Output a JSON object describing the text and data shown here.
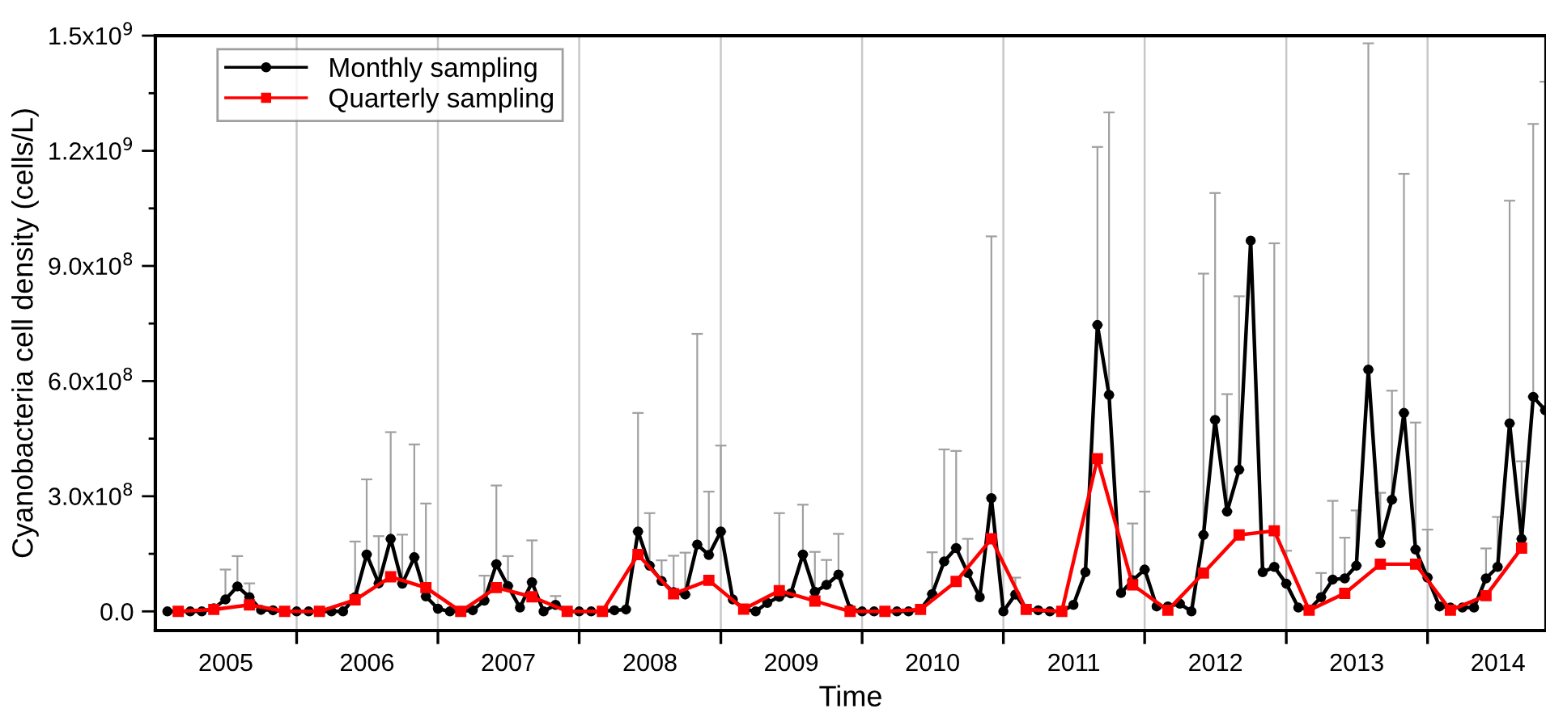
{
  "chart_data": {
    "type": "line",
    "xlabel": "Time",
    "ylabel": "Cyanobacteria cell density (cells/L)",
    "xlim": [
      "2005-01-01",
      "2014-11-03"
    ],
    "xticks": [
      {
        "value": "2006-01-01",
        "label": null
      },
      {
        "value": "2007-01-01",
        "label": null
      },
      {
        "value": "2008-01-01",
        "label": null
      },
      {
        "value": "2009-01-01",
        "label": null
      },
      {
        "value": "2010-01-01",
        "label": null
      },
      {
        "value": "2011-01-01",
        "label": null
      },
      {
        "value": "2012-01-01",
        "label": null
      },
      {
        "value": "2013-01-01",
        "label": null
      },
      {
        "value": "2014-01-01",
        "label": null
      },
      {
        "value": "2005-07-02",
        "label": "2005"
      },
      {
        "value": "2006-07-02",
        "label": "2006"
      },
      {
        "value": "2007-07-02",
        "label": "2007"
      },
      {
        "value": "2008-07-02",
        "label": "2008"
      },
      {
        "value": "2009-07-02",
        "label": "2009"
      },
      {
        "value": "2010-07-02",
        "label": "2010"
      },
      {
        "value": "2011-07-02",
        "label": "2011"
      },
      {
        "value": "2012-07-02",
        "label": "2012"
      },
      {
        "value": "2013-07-02",
        "label": "2013"
      },
      {
        "value": "2014-07-02",
        "label": "2014"
      }
    ],
    "ylim": [
      -50000000.0,
      1500000000.0
    ],
    "yticks": [
      {
        "value": 0,
        "label": "0.0"
      },
      {
        "value": 300000000.0,
        "label": "3.0x10$^{8}$"
      },
      {
        "value": 600000000.0,
        "label": "6.0x10$^{8}$"
      },
      {
        "value": 900000000.0,
        "label": "9.0x10$^{8}$"
      },
      {
        "value": 1200000000.0,
        "label": "1.2x10$^{9}$"
      },
      {
        "value": 1500000000.0,
        "label": "1.5x10$^{9}$"
      },
      {
        "value": 150000000.0,
        "label": null
      },
      {
        "value": 450000000.0,
        "label": null
      },
      {
        "value": 750000000.0,
        "label": null
      },
      {
        "value": 1050000000.0,
        "label": null
      },
      {
        "value": 1350000000.0,
        "label": null
      }
    ],
    "grid": "x",
    "legend": "top left",
    "series": [
      {
        "name": "Monthly sampling",
        "color": "#000000",
        "marker": "circle",
        "x": [
          "2005-02",
          "2005-03",
          "2005-04",
          "2005-05",
          "2005-06",
          "2005-07",
          "2005-08",
          "2005-09",
          "2005-10",
          "2005-11",
          "2005-12",
          "2006-01",
          "2006-02",
          "2006-03",
          "2006-04",
          "2006-05",
          "2006-06",
          "2006-07",
          "2006-08",
          "2006-09",
          "2006-10",
          "2006-11",
          "2006-12",
          "2007-01",
          "2007-02",
          "2007-03",
          "2007-04",
          "2007-05",
          "2007-06",
          "2007-07",
          "2007-08",
          "2007-09",
          "2007-10",
          "2007-11",
          "2007-12",
          "2008-01",
          "2008-02",
          "2008-03",
          "2008-04",
          "2008-05",
          "2008-06",
          "2008-07",
          "2008-08",
          "2008-09",
          "2008-10",
          "2008-11",
          "2008-12",
          "2009-01",
          "2009-02",
          "2009-03",
          "2009-04",
          "2009-05",
          "2009-06",
          "2009-07",
          "2009-08",
          "2009-09",
          "2009-10",
          "2009-11",
          "2009-12",
          "2010-01",
          "2010-02",
          "2010-03",
          "2010-04",
          "2010-05",
          "2010-06",
          "2010-07",
          "2010-08",
          "2010-09",
          "2010-10",
          "2010-11",
          "2010-12",
          "2011-01",
          "2011-02",
          "2011-03",
          "2011-04",
          "2011-05",
          "2011-06",
          "2011-07",
          "2011-08",
          "2011-09",
          "2011-10",
          "2011-11",
          "2011-12",
          "2012-01",
          "2012-02",
          "2012-03",
          "2012-04",
          "2012-05",
          "2012-06",
          "2012-07",
          "2012-08",
          "2012-09",
          "2012-10",
          "2012-11",
          "2012-12",
          "2013-01",
          "2013-02",
          "2013-03",
          "2013-04",
          "2013-05",
          "2013-06",
          "2013-07",
          "2013-08",
          "2013-09",
          "2013-10",
          "2013-11",
          "2013-12",
          "2014-01",
          "2014-02",
          "2014-03",
          "2014-04",
          "2014-05",
          "2014-06",
          "2014-07",
          "2014-08",
          "2014-09",
          "2014-10",
          "2014-11"
        ],
        "values": [
          0,
          0,
          0,
          0,
          8000000.0,
          31000000.0,
          65000000.0,
          37000000.0,
          4000000.0,
          3000000.0,
          0,
          0,
          0,
          0,
          0,
          0,
          37000000.0,
          148000000.0,
          73000000.0,
          189000000.0,
          72000000.0,
          141000000.0,
          39000000.0,
          7000000.0,
          0,
          0,
          3000000.0,
          28000000.0,
          123000000.0,
          66000000.0,
          10000000.0,
          76000000.0,
          0,
          17000000.0,
          0,
          0,
          0,
          0,
          3000000.0,
          5000000.0,
          208000000.0,
          119000000.0,
          79000000.0,
          50000000.0,
          44000000.0,
          174000000.0,
          147000000.0,
          208000000.0,
          31000000.0,
          6000000.0,
          0,
          22000000.0,
          38000000.0,
          47000000.0,
          148000000.0,
          51000000.0,
          69000000.0,
          96000000.0,
          6000000.0,
          0,
          0,
          0,
          0,
          0,
          5000000.0,
          45000000.0,
          130000000.0,
          165000000.0,
          100000000.0,
          37000000.0,
          295000000.0,
          0,
          44000000.0,
          5000000.0,
          3000000.0,
          0,
          0,
          17000000.0,
          102000000.0,
          746000000.0,
          564000000.0,
          48000000.0,
          81000000.0,
          109000000.0,
          13000000.0,
          13000000.0,
          20000000.0,
          0,
          199000000.0,
          499000000.0,
          260000000.0,
          369000000.0,
          966000000.0,
          102000000.0,
          116000000.0,
          72000000.0,
          10000000.0,
          5000000.0,
          37000000.0,
          83000000.0,
          86000000.0,
          119000000.0,
          630000000.0,
          178000000.0,
          291000000.0,
          517000000.0,
          161000000.0,
          88000000.0,
          13000000.0,
          10000000.0,
          10000000.0,
          10000000.0,
          86000000.0,
          116000000.0,
          490000000.0,
          189000000.0,
          559000000.0,
          524000000.0
        ],
        "errors": [
          null,
          null,
          null,
          null,
          null,
          [
            31000000.0,
            109000000.0
          ],
          [
            65000000.0,
            144000000.0
          ],
          [
            37000000.0,
            73000000.0
          ],
          null,
          null,
          null,
          null,
          null,
          null,
          null,
          null,
          [
            37000000.0,
            182000000.0
          ],
          [
            148000000.0,
            344000000.0
          ],
          [
            73000000.0,
            196000000.0
          ],
          [
            189000000.0,
            467000000.0
          ],
          [
            72000000.0,
            200000000.0
          ],
          [
            141000000.0,
            435000000.0
          ],
          [
            39000000.0,
            281000000.0
          ],
          null,
          null,
          null,
          null,
          [
            28000000.0,
            93000000.0
          ],
          [
            123000000.0,
            328000000.0
          ],
          [
            66000000.0,
            144000000.0
          ],
          null,
          [
            76000000.0,
            185000000.0
          ],
          null,
          [
            17000000.0,
            40000000.0
          ],
          null,
          null,
          null,
          null,
          null,
          null,
          [
            208000000.0,
            517000000.0
          ],
          [
            119000000.0,
            256000000.0
          ],
          [
            79000000.0,
            133000000.0
          ],
          [
            50000000.0,
            145000000.0
          ],
          [
            44000000.0,
            153000000.0
          ],
          [
            174000000.0,
            723000000.0
          ],
          [
            147000000.0,
            312000000.0
          ],
          [
            208000000.0,
            432000000.0
          ],
          null,
          null,
          null,
          null,
          [
            38000000.0,
            256000000.0
          ],
          null,
          [
            148000000.0,
            278000000.0
          ],
          [
            51000000.0,
            155000000.0
          ],
          [
            69000000.0,
            134000000.0
          ],
          [
            96000000.0,
            202000000.0
          ],
          null,
          null,
          null,
          null,
          null,
          null,
          null,
          [
            45000000.0,
            154000000.0
          ],
          [
            130000000.0,
            422000000.0
          ],
          [
            165000000.0,
            418000000.0
          ],
          [
            100000000.0,
            189000000.0
          ],
          null,
          [
            295000000.0,
            977000000.0
          ],
          null,
          [
            44000000.0,
            88000000.0
          ],
          null,
          null,
          null,
          null,
          null,
          null,
          [
            746000000.0,
            1210000000.0
          ],
          [
            564000000.0,
            1300000000.0
          ],
          null,
          [
            81000000.0,
            229000000.0
          ],
          [
            109000000.0,
            312000000.0
          ],
          null,
          null,
          null,
          null,
          [
            199000000.0,
            880000000.0
          ],
          [
            499000000.0,
            1090000000.0
          ],
          [
            260000000.0,
            566000000.0
          ],
          [
            369000000.0,
            821000000.0
          ],
          null,
          null,
          [
            116000000.0,
            959000000.0
          ],
          [
            72000000.0,
            158000000.0
          ],
          null,
          null,
          [
            37000000.0,
            100000000.0
          ],
          [
            83000000.0,
            288000000.0
          ],
          [
            86000000.0,
            192000000.0
          ],
          [
            119000000.0,
            263000000.0
          ],
          [
            630000000.0,
            1480000000.0
          ],
          [
            178000000.0,
            309000000.0
          ],
          [
            291000000.0,
            575000000.0
          ],
          [
            517000000.0,
            1140000000.0
          ],
          [
            161000000.0,
            492000000.0
          ],
          [
            88000000.0,
            213000000.0
          ],
          null,
          null,
          null,
          null,
          [
            86000000.0,
            164000000.0
          ],
          [
            116000000.0,
            246000000.0
          ],
          [
            490000000.0,
            1070000000.0
          ],
          [
            189000000.0,
            391000000.0
          ],
          [
            559000000.0,
            1270000000.0
          ],
          [
            524000000.0,
            1380000000.0
          ]
        ]
      },
      {
        "name": "Quarterly sampling",
        "color": "#ff0000",
        "marker": "square",
        "x": [
          "2005-03",
          "2005-06",
          "2005-09",
          "2005-12",
          "2006-03",
          "2006-06",
          "2006-09",
          "2006-12",
          "2007-03",
          "2007-06",
          "2007-09",
          "2007-12",
          "2008-03",
          "2008-06",
          "2008-09",
          "2008-12",
          "2009-03",
          "2009-06",
          "2009-09",
          "2009-12",
          "2010-03",
          "2010-06",
          "2010-09",
          "2010-12",
          "2011-03",
          "2011-06",
          "2011-09",
          "2011-12",
          "2012-03",
          "2012-06",
          "2012-09",
          "2012-12",
          "2013-03",
          "2013-06",
          "2013-09",
          "2013-12",
          "2014-03",
          "2014-06",
          "2014-09"
        ],
        "values": [
          0,
          5000000.0,
          17000000.0,
          0,
          0,
          30000000.0,
          90000000.0,
          62000000.0,
          0,
          62000000.0,
          38000000.0,
          0,
          0,
          148000000.0,
          46000000.0,
          81000000.0,
          6000000.0,
          54000000.0,
          27000000.0,
          0,
          0,
          5000000.0,
          78000000.0,
          189000000.0,
          5000000.0,
          0,
          398000000.0,
          69000000.0,
          3000000.0,
          100000000.0,
          199000000.0,
          210000000.0,
          3000000.0,
          47000000.0,
          123000000.0,
          123000000.0,
          3000000.0,
          41000000.0,
          165000000.0
        ]
      }
    ]
  }
}
